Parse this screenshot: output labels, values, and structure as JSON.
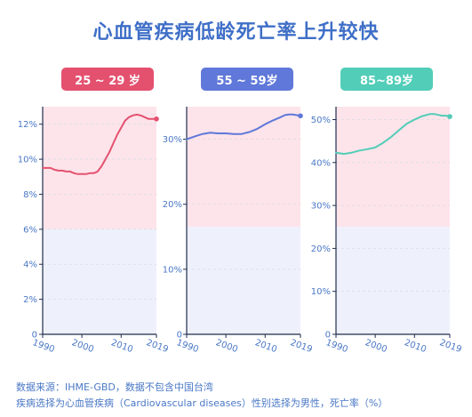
{
  "title": "心血管疾病低龄死亡率上升较快",
  "colors": {
    "title": "#3f6fc7",
    "upper_band": "#fde4ea",
    "lower_band": "#eef0fc",
    "axis": "#1f2d4d",
    "tick_text": "#4a78c6",
    "source_text": "#4a78c6"
  },
  "chart_data": [
    {
      "type": "line",
      "badge": "25 ~ 29 岁",
      "badge_color": "#e4516f",
      "line_color": "#e4516f",
      "band_split": 6,
      "ylim": [
        0,
        13
      ],
      "yticks": [
        0,
        2,
        4,
        6,
        8,
        10,
        12
      ],
      "ytick_labels": [
        "0",
        "2%",
        "4%",
        "6%",
        "8%",
        "10%",
        "12%"
      ],
      "xlim": [
        1990,
        2019
      ],
      "xticks": [
        1990,
        2000,
        2010,
        2019
      ],
      "xtick_labels": [
        "1990",
        "2000",
        "2010",
        "2019"
      ],
      "x": [
        1990,
        1991,
        1992,
        1993,
        1994,
        1995,
        1996,
        1997,
        1998,
        1999,
        2000,
        2001,
        2002,
        2003,
        2004,
        2005,
        2006,
        2007,
        2008,
        2009,
        2010,
        2011,
        2012,
        2013,
        2014,
        2015,
        2016,
        2017,
        2018,
        2019
      ],
      "y": [
        9.5,
        9.5,
        9.5,
        9.4,
        9.35,
        9.35,
        9.3,
        9.3,
        9.2,
        9.15,
        9.15,
        9.15,
        9.2,
        9.2,
        9.3,
        9.6,
        10.0,
        10.4,
        10.9,
        11.4,
        11.8,
        12.2,
        12.4,
        12.5,
        12.55,
        12.5,
        12.4,
        12.3,
        12.3,
        12.3
      ]
    },
    {
      "type": "line",
      "badge": "55 ~ 59岁",
      "badge_color": "#5f78d9",
      "line_color": "#5f78d9",
      "band_split": 16.5,
      "ylim": [
        0,
        35
      ],
      "yticks": [
        0,
        10,
        20,
        30
      ],
      "ytick_labels": [
        "0",
        "10%",
        "20%",
        "30%"
      ],
      "xlim": [
        1990,
        2019
      ],
      "xticks": [
        1990,
        2000,
        2010,
        2019
      ],
      "xtick_labels": [
        "1990",
        "2000",
        "2010",
        "2019"
      ],
      "x": [
        1990,
        1992,
        1994,
        1996,
        1998,
        2000,
        2002,
        2004,
        2006,
        2008,
        2010,
        2012,
        2014,
        2015,
        2016,
        2017,
        2018,
        2019
      ],
      "y": [
        30.0,
        30.4,
        30.8,
        31.0,
        30.9,
        30.9,
        30.8,
        30.8,
        31.1,
        31.6,
        32.3,
        32.9,
        33.4,
        33.7,
        33.8,
        33.8,
        33.7,
        33.6
      ]
    },
    {
      "type": "line",
      "badge": "85~89岁",
      "badge_color": "#52cdb8",
      "line_color": "#52cdb8",
      "band_split": 25,
      "ylim": [
        0,
        53
      ],
      "yticks": [
        0,
        10,
        20,
        30,
        40,
        50
      ],
      "ytick_labels": [
        "0",
        "10%",
        "20%",
        "30%",
        "40%",
        "50%"
      ],
      "xlim": [
        1990,
        2019
      ],
      "xticks": [
        1990,
        2000,
        2010,
        2019
      ],
      "xtick_labels": [
        "1990",
        "2000",
        "2010",
        "2019"
      ],
      "x": [
        1990,
        1992,
        1994,
        1996,
        1998,
        2000,
        2002,
        2004,
        2006,
        2008,
        2010,
        2012,
        2014,
        2015,
        2016,
        2017,
        2018,
        2019
      ],
      "y": [
        42.3,
        42.0,
        42.3,
        42.8,
        43.1,
        43.5,
        44.6,
        45.9,
        47.5,
        49.0,
        50.0,
        50.8,
        51.3,
        51.3,
        51.1,
        50.9,
        50.9,
        50.7
      ]
    }
  ],
  "source_lines": [
    "数据来源：IHME-GBD，数据不包含中国台湾",
    "疾病选择为心血管疾病（Cardiovascular diseases）性别选择为男性，死亡率（%）"
  ]
}
